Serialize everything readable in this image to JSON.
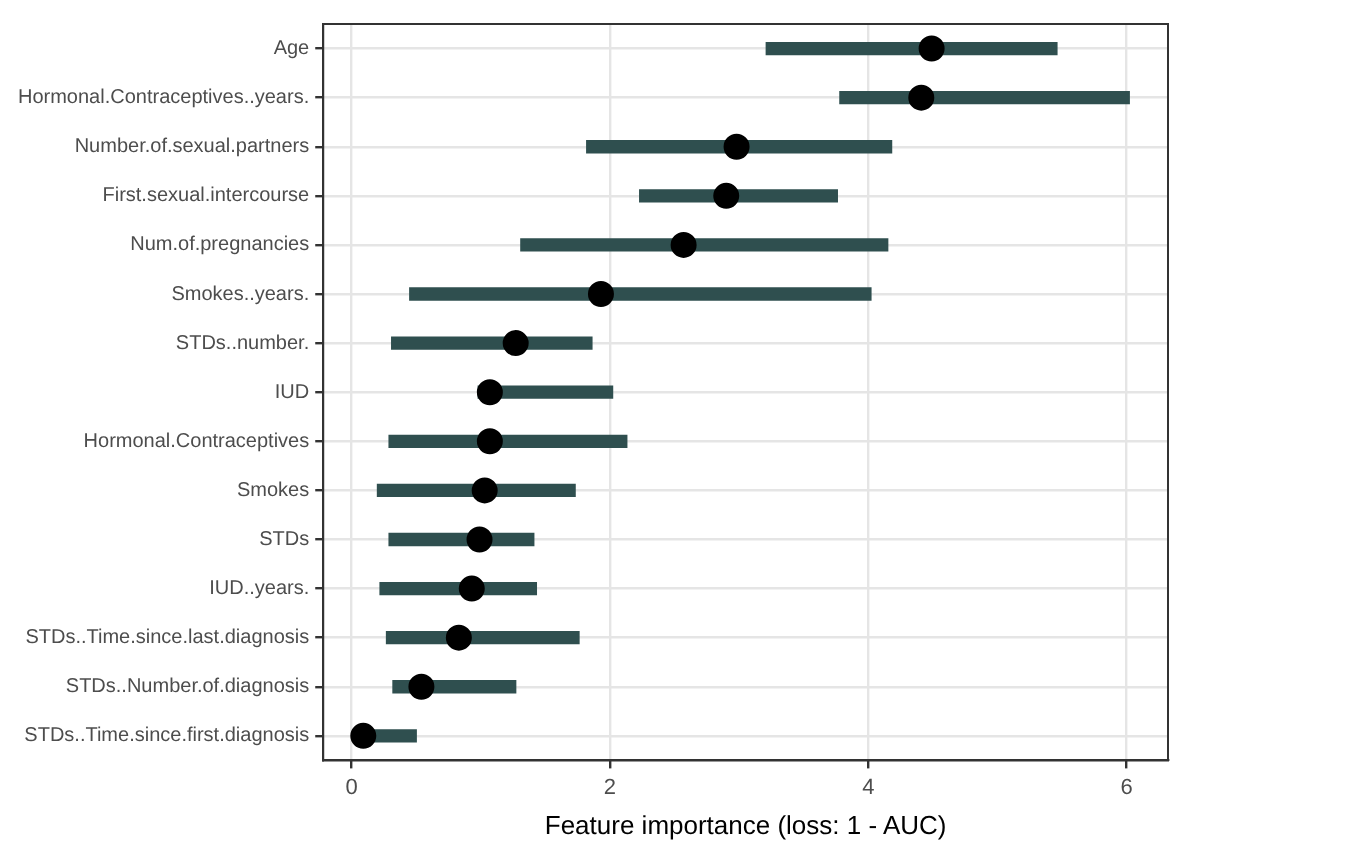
{
  "chart_data": {
    "type": "bar",
    "orientation": "horizontal",
    "xlabel": "Feature importance (loss: 1 - AUC)",
    "categories": [
      "Age",
      "Hormonal.Contraceptives..years.",
      "Number.of.sexual.partners",
      "First.sexual.intercourse",
      "Num.of.pregnancies",
      "Smokes..years.",
      "STDs..number.",
      "IUD",
      "Hormonal.Contraceptives",
      "Smokes",
      "STDs",
      "IUD..years.",
      "STDs..Time.since.last.diagnosis",
      "STDs..Number.of.diagnosis",
      "STDs..Time.since.first.diagnosis"
    ],
    "series": [
      {
        "color": "#2f4f4f",
        "base": [
          3.21,
          3.78,
          1.82,
          2.23,
          1.31,
          0.45,
          0.31,
          0.98,
          0.29,
          0.2,
          0.29,
          0.22,
          0.27,
          0.32,
          0.06
        ],
        "values": [
          2.25,
          2.24,
          2.36,
          1.53,
          2.84,
          3.57,
          1.55,
          1.04,
          1.84,
          1.53,
          1.12,
          1.21,
          1.49,
          0.95,
          0.44
        ]
      },
      {
        "type": "scatter",
        "color": "#000000",
        "values": [
          4.49,
          4.41,
          2.98,
          2.9,
          2.57,
          1.93,
          1.27,
          1.07,
          1.07,
          1.03,
          0.99,
          0.93,
          0.83,
          0.54,
          0.09
        ]
      }
    ],
    "xlim": [
      -0.22,
      6.32
    ],
    "xticks": [
      0,
      2,
      4,
      6
    ],
    "grid": true,
    "legend": false,
    "marker": "circle"
  }
}
